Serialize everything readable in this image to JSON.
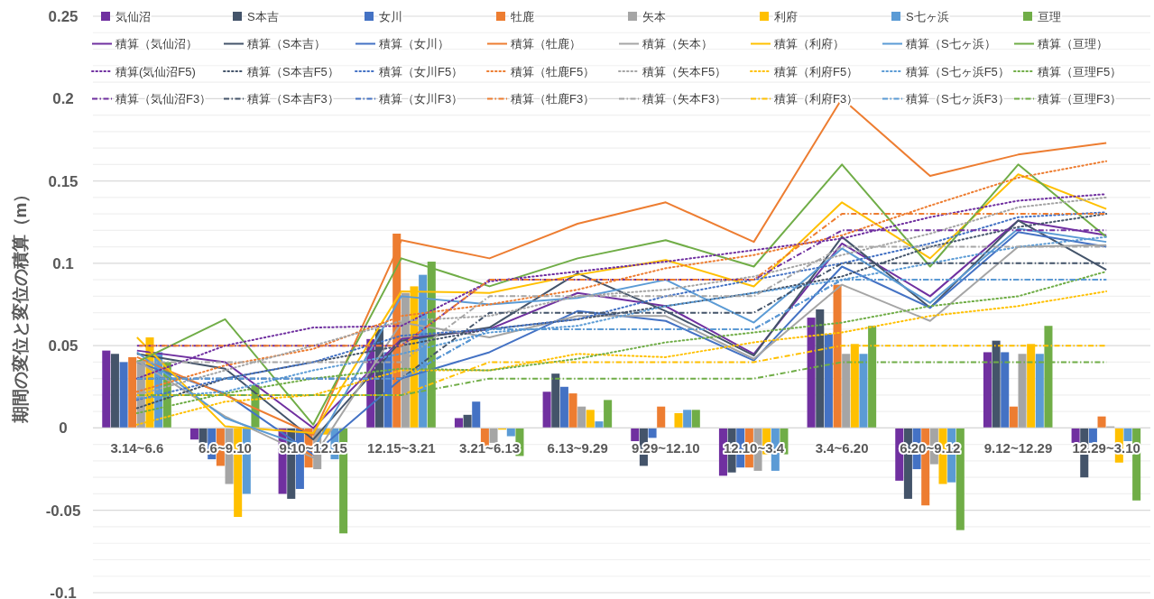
{
  "chart_data": {
    "type": "bar",
    "ylabel": "期間の変位と変位の積算（m）",
    "categories": [
      "3.14~6.6",
      "6.6~9.10",
      "9.10~12.15",
      "12.15~3.21",
      "3.21~6.13",
      "6.13~9.29",
      "9.29~12.10",
      "12.10~3.4",
      "3.4~6.20",
      "6.20~9.12",
      "9.12~12.29",
      "12.29~3.10"
    ],
    "ylim": [
      -0.1,
      0.25
    ],
    "yticks": [
      -0.1,
      {
        "value": -0.09,
        "label": null
      },
      {
        "value": -0.08,
        "label": null
      },
      {
        "value": -0.07,
        "label": null
      },
      {
        "value": -0.06,
        "label": null
      },
      -0.05,
      {
        "value": -0.04,
        "label": null
      },
      {
        "value": -0.03,
        "label": null
      },
      {
        "value": -0.02,
        "label": null
      },
      {
        "value": -0.01,
        "label": null
      },
      0,
      {
        "value": 0.01,
        "label": null
      },
      {
        "value": 0.02,
        "label": null
      },
      {
        "value": 0.03,
        "label": null
      },
      {
        "value": 0.04,
        "label": null
      },
      0.05,
      {
        "value": 0.06,
        "label": null
      },
      {
        "value": 0.07,
        "label": null
      },
      {
        "value": 0.08,
        "label": null
      },
      {
        "value": 0.09,
        "label": null
      },
      0.1,
      {
        "value": 0.11,
        "label": null
      },
      {
        "value": 0.12,
        "label": null
      },
      {
        "value": 0.13,
        "label": null
      },
      {
        "value": 0.14,
        "label": null
      },
      0.15,
      {
        "value": 0.16,
        "label": null
      },
      {
        "value": 0.17,
        "label": null
      },
      {
        "value": 0.18,
        "label": null
      },
      {
        "value": 0.19,
        "label": null
      },
      0.2,
      {
        "value": 0.21,
        "label": null
      },
      {
        "value": 0.22,
        "label": null
      },
      {
        "value": 0.23,
        "label": null
      },
      {
        "value": 0.24,
        "label": null
      },
      0.25
    ],
    "grid": "y",
    "legend": "top",
    "series": [
      {
        "name": "気仙沼",
        "color": "#7030a0",
        "values": [
          0.047,
          -0.007,
          -0.04,
          0.054,
          0.006,
          0.022,
          -0.008,
          -0.029,
          0.067,
          -0.032,
          0.046,
          -0.009
        ]
      },
      {
        "name": "S本吉",
        "color": "#44546a",
        "values": [
          0.045,
          -0.009,
          -0.043,
          0.06,
          0.008,
          0.033,
          -0.023,
          -0.027,
          0.072,
          -0.043,
          0.053,
          -0.03
        ]
      },
      {
        "name": "女川",
        "color": "#4472c4",
        "values": [
          0.04,
          -0.019,
          -0.037,
          0.046,
          0.016,
          0.025,
          -0.006,
          -0.024,
          0.057,
          -0.025,
          0.046,
          -0.009
        ]
      },
      {
        "name": "牡鹿",
        "color": "#ed7d31",
        "values": [
          0.043,
          -0.023,
          -0.024,
          0.118,
          -0.011,
          0.021,
          0.013,
          -0.024,
          0.087,
          -0.047,
          0.013,
          0.007
        ]
      },
      {
        "name": "矢本",
        "color": "#a5a5a5",
        "values": [
          0.041,
          -0.034,
          -0.025,
          0.082,
          -0.009,
          0.013,
          0,
          -0.026,
          0.045,
          -0.022,
          0.045,
          0.001
        ]
      },
      {
        "name": "利府",
        "color": "#ffc000",
        "values": [
          0.055,
          -0.054,
          -0.004,
          0.086,
          -0.001,
          0.011,
          0.009,
          -0.016,
          0.051,
          -0.034,
          0.051,
          -0.021
        ]
      },
      {
        "name": "S七ヶ浜",
        "color": "#5b9bd5",
        "values": [
          0.046,
          -0.04,
          -0.019,
          0.093,
          -0.005,
          0.004,
          0.011,
          -0.026,
          0.045,
          -0.033,
          0.045,
          -0.008
        ]
      },
      {
        "name": "亘理",
        "color": "#70ad47",
        "values": [
          0.04,
          0.026,
          -0.064,
          0.101,
          -0.017,
          0.017,
          0.011,
          -0.016,
          0.062,
          -0.062,
          0.062,
          -0.044
        ]
      },
      {
        "name": "積算（気仙沼）",
        "type": "line",
        "line_style": "solid",
        "color": "#7030a0",
        "values": [
          0.047,
          0.04,
          0.0,
          0.054,
          0.06,
          0.082,
          0.074,
          0.045,
          0.112,
          0.08,
          0.126,
          0.117
        ]
      },
      {
        "name": "積算（S本吉）",
        "type": "line",
        "line_style": "solid",
        "color": "#44546a",
        "values": [
          0.045,
          0.036,
          -0.007,
          0.053,
          0.061,
          0.094,
          0.071,
          0.044,
          0.116,
          0.073,
          0.126,
          0.096
        ]
      },
      {
        "name": "積算（女川）",
        "type": "line",
        "line_style": "solid",
        "color": "#4472c4",
        "values": [
          0.04,
          0.021,
          -0.016,
          0.03,
          0.046,
          0.071,
          0.065,
          0.041,
          0.098,
          0.073,
          0.119,
          0.11
        ]
      },
      {
        "name": "積算（牡鹿）",
        "type": "line",
        "line_style": "solid",
        "color": "#ed7d31",
        "values": [
          0.043,
          0.02,
          -0.004,
          0.114,
          0.103,
          0.124,
          0.137,
          0.113,
          0.2,
          0.153,
          0.166,
          0.173
        ]
      },
      {
        "name": "積算（矢本）",
        "type": "line",
        "line_style": "solid",
        "color": "#a5a5a5",
        "values": [
          0.041,
          0.007,
          -0.018,
          0.064,
          0.055,
          0.068,
          0.068,
          0.042,
          0.087,
          0.065,
          0.11,
          0.111
        ]
      },
      {
        "name": "積算（利府）",
        "type": "line",
        "line_style": "solid",
        "color": "#ffc000",
        "values": [
          0.055,
          0.001,
          -0.003,
          0.083,
          0.082,
          0.093,
          0.102,
          0.086,
          0.137,
          0.103,
          0.154,
          0.133
        ]
      },
      {
        "name": "積算（S七ヶ浜）",
        "type": "line",
        "line_style": "solid",
        "color": "#5b9bd5",
        "values": [
          0.046,
          0.006,
          -0.013,
          0.08,
          0.075,
          0.079,
          0.09,
          0.064,
          0.109,
          0.076,
          0.121,
          0.113
        ]
      },
      {
        "name": "積算（亘理）",
        "type": "line",
        "line_style": "solid",
        "color": "#70ad47",
        "values": [
          0.04,
          0.066,
          0.002,
          0.103,
          0.086,
          0.103,
          0.114,
          0.098,
          0.16,
          0.098,
          0.16,
          0.116
        ]
      },
      {
        "name": "積算(気仙沼F5)",
        "type": "line",
        "line_style": "dotted",
        "color": "#7030a0",
        "values": [
          0.03,
          0.05,
          0.061,
          0.062,
          0.089,
          0.095,
          0.101,
          0.108,
          0.115,
          0.128,
          0.138,
          0.142
        ]
      },
      {
        "name": "積算（S本吉F5）",
        "type": "line",
        "line_style": "dotted",
        "color": "#44546a",
        "values": [
          0.012,
          0.03,
          0.04,
          0.05,
          0.06,
          0.066,
          0.074,
          0.082,
          0.092,
          0.11,
          0.122,
          0.13
        ]
      },
      {
        "name": "積算（女川F5）",
        "type": "line",
        "line_style": "dotted",
        "color": "#4472c4",
        "values": [
          0.017,
          0.03,
          0.04,
          0.056,
          0.06,
          0.066,
          0.08,
          0.09,
          0.1,
          0.112,
          0.128,
          0.131
        ]
      },
      {
        "name": "積算（牡鹿F5）",
        "type": "line",
        "line_style": "dotted",
        "color": "#ed7d31",
        "values": [
          0.022,
          0.038,
          0.048,
          0.068,
          0.075,
          0.084,
          0.097,
          0.105,
          0.117,
          0.135,
          0.152,
          0.162
        ]
      },
      {
        "name": "積算（矢本F5）",
        "type": "line",
        "line_style": "dotted",
        "color": "#a5a5a5",
        "values": [
          0.02,
          0.035,
          0.05,
          0.065,
          0.068,
          0.08,
          0.084,
          0.092,
          0.105,
          0.118,
          0.134,
          0.14
        ]
      },
      {
        "name": "積算（利府F5）",
        "type": "line",
        "line_style": "dotted",
        "color": "#ffc000",
        "values": [
          0.002,
          0.016,
          0.02,
          0.035,
          0.035,
          0.045,
          0.043,
          0.052,
          0.058,
          0.068,
          0.074,
          0.083
        ]
      },
      {
        "name": "積算（S七ヶ浜F5）",
        "type": "line",
        "line_style": "dotted",
        "color": "#5b9bd5",
        "values": [
          0.018,
          0.022,
          0.035,
          0.045,
          0.058,
          0.062,
          0.074,
          0.082,
          0.09,
          0.1,
          0.11,
          0.116
        ]
      },
      {
        "name": "積算（亘理F5）",
        "type": "line",
        "line_style": "dotted",
        "color": "#70ad47",
        "values": [
          0.009,
          0.021,
          0.03,
          0.036,
          0.035,
          0.042,
          0.052,
          0.058,
          0.064,
          0.074,
          0.08,
          0.095
        ]
      },
      {
        "name": "積算（気仙沼F3）",
        "type": "line",
        "line_style": "dashed",
        "color": "#7030a0",
        "values": [
          0.05,
          0.05,
          0.05,
          0.05,
          0.09,
          0.09,
          0.09,
          0.09,
          0.12,
          0.12,
          0.12,
          0.12
        ]
      },
      {
        "name": "積算（S本吉F3）",
        "type": "line",
        "line_style": "dashed",
        "color": "#44546a",
        "values": [
          0.03,
          0.03,
          0.03,
          0.03,
          0.07,
          0.07,
          0.07,
          0.07,
          0.1,
          0.1,
          0.1,
          0.1
        ]
      },
      {
        "name": "積算（女川F3）",
        "type": "line",
        "line_style": "dashed",
        "color": "#4472c4",
        "values": [
          0.03,
          0.03,
          0.03,
          0.03,
          0.06,
          0.06,
          0.06,
          0.06,
          0.09,
          0.09,
          0.09,
          0.09
        ]
      },
      {
        "name": "積算（牡鹿F3）",
        "type": "line",
        "line_style": "dashed",
        "color": "#ed7d31",
        "values": [
          0.05,
          0.05,
          0.05,
          0.05,
          0.09,
          0.09,
          0.09,
          0.09,
          0.13,
          0.13,
          0.13,
          0.13
        ]
      },
      {
        "name": "積算（矢本F3）",
        "type": "line",
        "line_style": "dashed",
        "color": "#a5a5a5",
        "values": [
          0.04,
          0.04,
          0.04,
          0.04,
          0.08,
          0.08,
          0.08,
          0.08,
          0.11,
          0.11,
          0.11,
          0.11
        ]
      },
      {
        "name": "積算（利府F3）",
        "type": "line",
        "line_style": "dashed",
        "color": "#ffc000",
        "values": [
          0.02,
          0.02,
          0.02,
          0.02,
          0.04,
          0.04,
          0.04,
          0.04,
          0.05,
          0.05,
          0.05,
          0.05
        ]
      },
      {
        "name": "積算（S七ヶ浜F3）",
        "type": "line",
        "line_style": "dashed",
        "color": "#5b9bd5",
        "values": [
          0.03,
          0.03,
          0.03,
          0.03,
          0.06,
          0.06,
          0.06,
          0.06,
          0.09,
          0.09,
          0.09,
          0.09
        ]
      },
      {
        "name": "積算（亘理F3）",
        "type": "line",
        "line_style": "dashed",
        "color": "#70ad47",
        "values": [
          0.02,
          0.02,
          0.02,
          0.02,
          0.03,
          0.03,
          0.03,
          0.03,
          0.04,
          0.04,
          0.04,
          0.04
        ]
      }
    ]
  }
}
